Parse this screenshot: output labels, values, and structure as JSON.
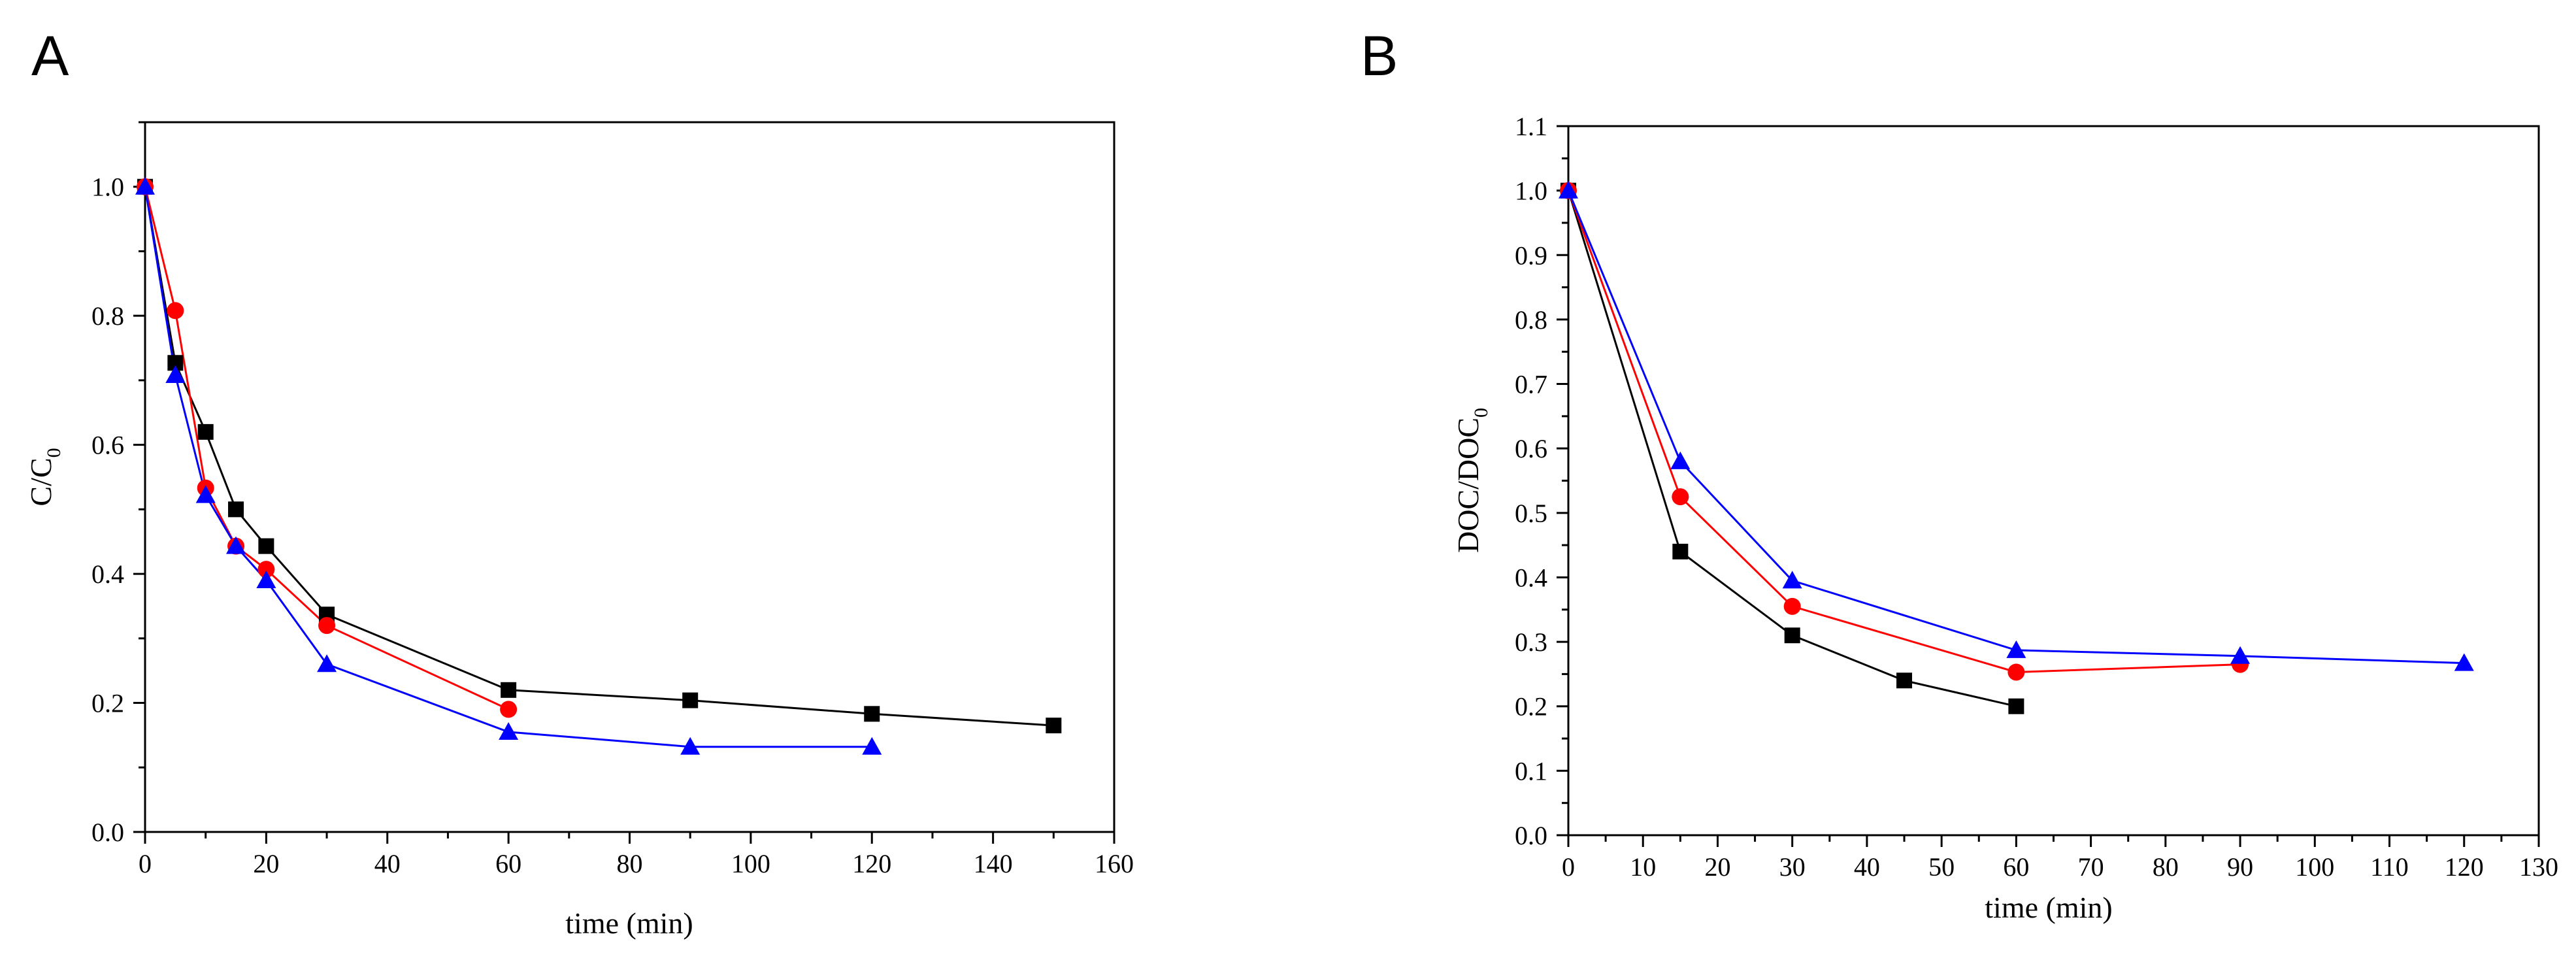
{
  "chart_data": [
    {
      "panel_label": "A",
      "type": "line",
      "xlabel": "time (min)",
      "ylabel": {
        "main": "C/C",
        "sub": "0"
      },
      "xlim": [
        0,
        160
      ],
      "ylim": [
        0,
        1.1
      ],
      "x_ticks": [
        0,
        20,
        40,
        60,
        80,
        100,
        120,
        140,
        160
      ],
      "y_ticks": [
        0.0,
        0.2,
        0.4,
        0.6,
        0.8,
        1.0
      ],
      "tick_decimals_y": 1,
      "series": [
        {
          "name": "black squares",
          "color": "#000000",
          "marker": "square",
          "x": [
            0,
            5,
            10,
            15,
            20,
            30,
            60,
            90,
            120,
            150
          ],
          "y": [
            1.0,
            0.727,
            0.62,
            0.5,
            0.443,
            0.337,
            0.22,
            0.204,
            0.183,
            0.165
          ]
        },
        {
          "name": "red circles",
          "color": "#ff0000",
          "marker": "circle",
          "x": [
            0,
            5,
            10,
            15,
            20,
            30,
            60
          ],
          "y": [
            1.0,
            0.808,
            0.533,
            0.443,
            0.407,
            0.32,
            0.19
          ]
        },
        {
          "name": "blue triangles",
          "color": "#0000ff",
          "marker": "triangle",
          "x": [
            0,
            5,
            10,
            15,
            20,
            30,
            60,
            90,
            120
          ],
          "y": [
            1.0,
            0.708,
            0.522,
            0.443,
            0.39,
            0.26,
            0.155,
            0.132,
            0.132
          ]
        }
      ]
    },
    {
      "panel_label": "B",
      "type": "line",
      "xlabel": "time (min)",
      "ylabel": {
        "main": "DOC/DOC",
        "sub": "0"
      },
      "xlim": [
        0,
        130
      ],
      "ylim": [
        0,
        1.1
      ],
      "x_ticks": [
        0,
        10,
        20,
        30,
        40,
        50,
        60,
        70,
        80,
        90,
        100,
        110,
        120,
        130
      ],
      "y_ticks": [
        0.0,
        0.1,
        0.2,
        0.3,
        0.4,
        0.5,
        0.6,
        0.7,
        0.8,
        0.9,
        1.0,
        1.1
      ],
      "tick_decimals_y": 1,
      "series": [
        {
          "name": "black squares",
          "color": "#000000",
          "marker": "square",
          "x": [
            0,
            15,
            30,
            45,
            60
          ],
          "y": [
            1.0,
            0.44,
            0.31,
            0.24,
            0.2
          ]
        },
        {
          "name": "red circles",
          "color": "#ff0000",
          "marker": "circle",
          "x": [
            0,
            15,
            30,
            60,
            90
          ],
          "y": [
            1.0,
            0.525,
            0.355,
            0.253,
            0.265
          ]
        },
        {
          "name": "blue triangles",
          "color": "#0000ff",
          "marker": "triangle",
          "x": [
            0,
            15,
            30,
            60,
            90,
            120
          ],
          "y": [
            1.0,
            0.58,
            0.395,
            0.287,
            0.278,
            0.267
          ]
        }
      ]
    }
  ]
}
